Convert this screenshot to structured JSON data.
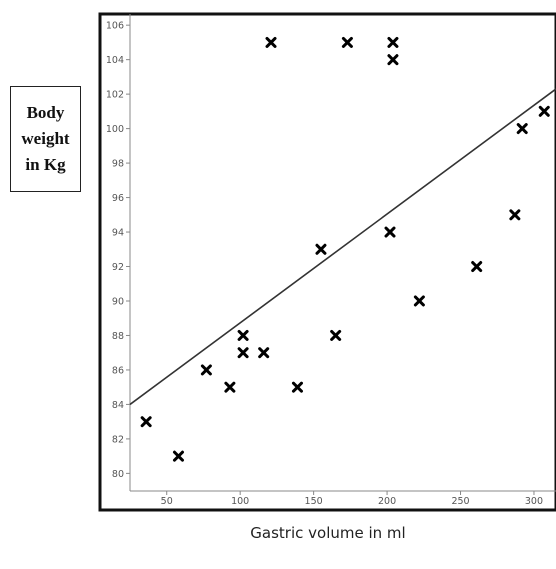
{
  "chart_data": {
    "type": "scatter",
    "title": "",
    "xlabel": "Gastric volume in ml",
    "ylabel": "Body weight\nin Kg",
    "xlim": [
      25,
      315
    ],
    "ylim": [
      79.5,
      106.3
    ],
    "x_ticks": [
      50,
      100,
      150,
      200,
      250,
      300
    ],
    "x_tick_labels": [
      "50",
      "100",
      "150",
      "200",
      "250",
      "300"
    ],
    "y_ticks": [
      80,
      82,
      84,
      86,
      88,
      90,
      92,
      94,
      96,
      98,
      100,
      102,
      104,
      106
    ],
    "y_tick_labels": [
      "80",
      "82",
      "84",
      "86",
      "88",
      "90",
      "92",
      "94",
      "96",
      "98",
      "100",
      "102",
      "104",
      "106"
    ],
    "grid": false,
    "legend": "none",
    "marker": "x",
    "marker_color": "#000000",
    "trendline_color": "#333333",
    "series": [
      {
        "points": [
          {
            "x": 36,
            "y": 83
          },
          {
            "x": 58,
            "y": 81
          },
          {
            "x": 77,
            "y": 86
          },
          {
            "x": 93,
            "y": 85
          },
          {
            "x": 102,
            "y": 87
          },
          {
            "x": 102,
            "y": 88
          },
          {
            "x": 116,
            "y": 87
          },
          {
            "x": 121,
            "y": 105
          },
          {
            "x": 139,
            "y": 85
          },
          {
            "x": 155,
            "y": 93
          },
          {
            "x": 165,
            "y": 88
          },
          {
            "x": 173,
            "y": 105
          },
          {
            "x": 202,
            "y": 94
          },
          {
            "x": 204,
            "y": 105
          },
          {
            "x": 204,
            "y": 104
          },
          {
            "x": 222,
            "y": 90
          },
          {
            "x": 261,
            "y": 92
          },
          {
            "x": 287,
            "y": 95
          },
          {
            "x": 292,
            "y": 100
          },
          {
            "x": 307,
            "y": 101
          }
        ]
      }
    ],
    "trendline": {
      "x": [
        25,
        315
      ],
      "y": [
        84,
        102.3
      ]
    }
  }
}
